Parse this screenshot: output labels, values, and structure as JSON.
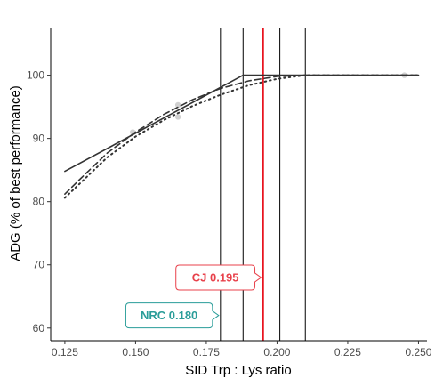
{
  "chart_data": {
    "type": "line",
    "title": "",
    "xlabel": "SID Trp : Lys ratio",
    "ylabel": "ADG (% of best performance)",
    "xlim": [
      0.12,
      0.253
    ],
    "ylim": [
      58,
      107.4
    ],
    "xticks": [
      0.125,
      0.15,
      0.175,
      0.2,
      0.225,
      0.25
    ],
    "xtick_labels": [
      "0.125",
      "0.150",
      "0.175",
      "0.200",
      "0.225",
      "0.250"
    ],
    "yticks": [
      60,
      70,
      80,
      90,
      100
    ],
    "ytick_labels": [
      "60",
      "70",
      "80",
      "90",
      "100"
    ],
    "grid": false,
    "legend": "none",
    "series": [
      {
        "style": "solid",
        "color": "#333333",
        "x": [
          0.125,
          0.188,
          0.25
        ],
        "y": [
          84.8,
          100.0,
          100.0
        ]
      },
      {
        "style": "dashed",
        "color": "#333333",
        "x": [
          0.125,
          0.13,
          0.14,
          0.15,
          0.16,
          0.17,
          0.18,
          0.19,
          0.2,
          0.21,
          0.25
        ],
        "y": [
          81.2,
          83.4,
          87.7,
          91.0,
          93.8,
          96.1,
          97.9,
          99.1,
          99.8,
          100.0,
          100.0
        ]
      },
      {
        "style": "dotted",
        "color": "#333333",
        "x": [
          0.125,
          0.14,
          0.15,
          0.16,
          0.17,
          0.18,
          0.19,
          0.2,
          0.21,
          0.25
        ],
        "y": [
          80.6,
          87.0,
          90.3,
          92.9,
          95.1,
          96.9,
          98.4,
          99.4,
          100.0,
          100.0
        ]
      }
    ],
    "observed_points": [
      {
        "x": 0.149,
        "y": 91.0
      },
      {
        "x": 0.165,
        "y": 95.3
      },
      {
        "x": 0.165,
        "y": 93.4
      },
      {
        "x": 0.245,
        "y": 100.0
      }
    ],
    "reference_lines": [
      {
        "x": 0.18,
        "color": "#000000"
      },
      {
        "x": 0.188,
        "color": "#000000"
      },
      {
        "x": 0.195,
        "color": "#e8141f"
      },
      {
        "x": 0.201,
        "color": "#000000"
      },
      {
        "x": 0.21,
        "color": "#000000"
      }
    ],
    "annotations": [
      {
        "label": "CJ 0.195",
        "color": "#e8414b",
        "x": 0.195,
        "y": 68.0
      },
      {
        "label": "NRC 0.180",
        "color": "#2a9d99",
        "x": 0.18,
        "y": 62.0
      }
    ]
  }
}
